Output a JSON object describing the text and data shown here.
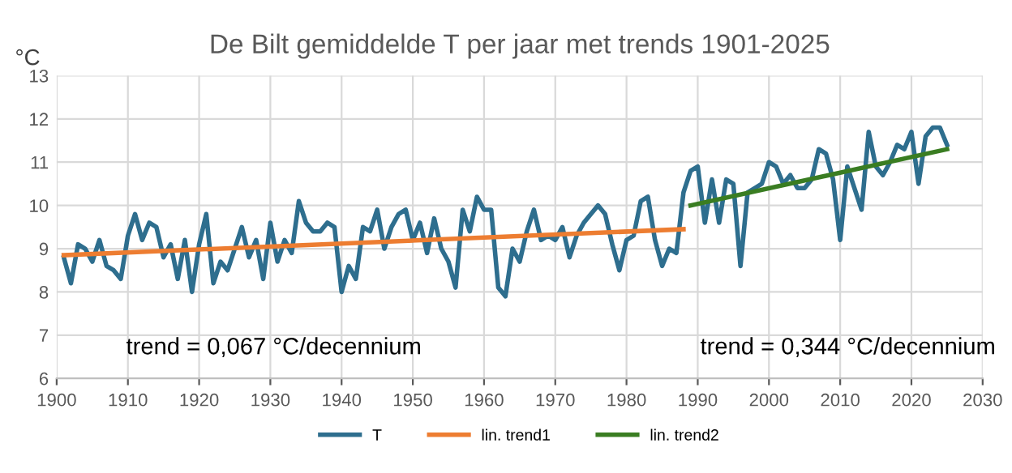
{
  "chart_data": {
    "type": "line",
    "title": "De Bilt gemiddelde T per jaar met trends 1901-2025",
    "ylabel": "°C",
    "annotations": [
      "trend = 0,067 °C/decennium",
      "trend = 0,344 °C/decennium"
    ],
    "xlim": [
      1900,
      2030
    ],
    "xticks": [
      1900,
      1910,
      1920,
      1930,
      1940,
      1950,
      1960,
      1970,
      1980,
      1990,
      2000,
      2010,
      2020,
      2030
    ],
    "ylim": [
      6,
      13
    ],
    "yticks": [
      6,
      7,
      8,
      9,
      10,
      11,
      12,
      13
    ],
    "grid": true,
    "legend": "bottom",
    "marker": "none",
    "line_style": "solid",
    "series": [
      {
        "name": "T",
        "color": "#2e6e8e",
        "x": [
          1901,
          1902,
          1903,
          1904,
          1905,
          1906,
          1907,
          1908,
          1909,
          1910,
          1911,
          1912,
          1913,
          1914,
          1915,
          1916,
          1917,
          1918,
          1919,
          1920,
          1921,
          1922,
          1923,
          1924,
          1925,
          1926,
          1927,
          1928,
          1929,
          1930,
          1931,
          1932,
          1933,
          1934,
          1935,
          1936,
          1937,
          1938,
          1939,
          1940,
          1941,
          1942,
          1943,
          1944,
          1945,
          1946,
          1947,
          1948,
          1949,
          1950,
          1951,
          1952,
          1953,
          1954,
          1955,
          1956,
          1957,
          1958,
          1959,
          1960,
          1961,
          1962,
          1963,
          1964,
          1965,
          1966,
          1967,
          1968,
          1969,
          1970,
          1971,
          1972,
          1973,
          1974,
          1975,
          1976,
          1977,
          1978,
          1979,
          1980,
          1981,
          1982,
          1983,
          1984,
          1985,
          1986,
          1987,
          1988,
          1989,
          1990,
          1991,
          1992,
          1993,
          1994,
          1995,
          1996,
          1997,
          1998,
          1999,
          2000,
          2001,
          2002,
          2003,
          2004,
          2005,
          2006,
          2007,
          2008,
          2009,
          2010,
          2011,
          2012,
          2013,
          2014,
          2015,
          2016,
          2017,
          2018,
          2019,
          2020,
          2021,
          2022,
          2023,
          2024,
          2025
        ],
        "values": [
          8.8,
          8.2,
          9.1,
          9.0,
          8.7,
          9.2,
          8.6,
          8.5,
          8.3,
          9.3,
          9.8,
          9.2,
          9.6,
          9.5,
          8.8,
          9.1,
          8.3,
          9.2,
          8.0,
          9.1,
          9.8,
          8.2,
          8.7,
          8.5,
          9.0,
          9.5,
          8.8,
          9.2,
          8.3,
          9.6,
          8.7,
          9.2,
          8.9,
          10.1,
          9.6,
          9.4,
          9.4,
          9.6,
          9.5,
          8.0,
          8.6,
          8.3,
          9.5,
          9.4,
          9.9,
          9.0,
          9.5,
          9.8,
          9.9,
          9.2,
          9.6,
          8.9,
          9.7,
          9.0,
          8.7,
          8.1,
          9.9,
          9.4,
          10.2,
          9.9,
          9.9,
          8.1,
          7.9,
          9.0,
          8.7,
          9.4,
          9.9,
          9.2,
          9.3,
          9.2,
          9.5,
          8.8,
          9.3,
          9.6,
          9.8,
          10.0,
          9.8,
          9.1,
          8.5,
          9.2,
          9.3,
          10.1,
          10.2,
          9.2,
          8.6,
          9.0,
          8.9,
          10.3,
          10.8,
          10.9,
          9.6,
          10.6,
          9.6,
          10.6,
          10.5,
          8.6,
          10.3,
          10.4,
          10.5,
          11.0,
          10.9,
          10.5,
          10.7,
          10.4,
          10.4,
          10.6,
          11.3,
          11.2,
          10.6,
          9.2,
          10.9,
          10.4,
          9.9,
          11.7,
          10.9,
          10.7,
          11.0,
          11.4,
          11.3,
          11.7,
          10.5,
          11.6,
          11.8,
          11.8,
          11.4
        ]
      },
      {
        "name": "lin. trend1",
        "color": "#ed7d31",
        "x": [
          1901,
          1988
        ],
        "values": [
          8.85,
          9.45
        ]
      },
      {
        "name": "lin. trend2",
        "color": "#3a7d22",
        "x": [
          1989,
          2025
        ],
        "values": [
          10.0,
          11.3
        ]
      }
    ]
  }
}
